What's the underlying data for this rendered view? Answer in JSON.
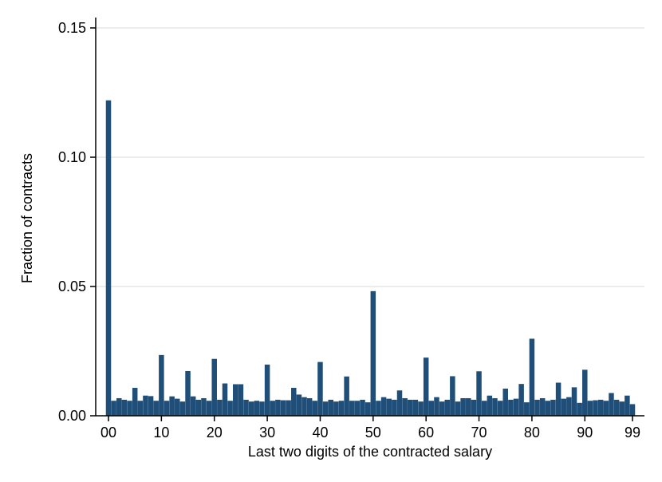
{
  "chart_data": {
    "type": "bar",
    "xlabel": "Last two digits of the contracted salary",
    "ylabel": "Fraction of contracts",
    "ylim": [
      0,
      0.15
    ],
    "xlim": [
      -1,
      100
    ],
    "grid": true,
    "bar_color": "#1f4e79",
    "y_ticks": [
      "0.00",
      "0.05",
      "0.10",
      "0.15"
    ],
    "x_ticks": [
      {
        "value": 0,
        "label": "00"
      },
      {
        "value": 10,
        "label": "10"
      },
      {
        "value": 20,
        "label": "20"
      },
      {
        "value": 30,
        "label": "30"
      },
      {
        "value": 40,
        "label": "40"
      },
      {
        "value": 50,
        "label": "50"
      },
      {
        "value": 60,
        "label": "60"
      },
      {
        "value": 70,
        "label": "70"
      },
      {
        "value": 80,
        "label": "80"
      },
      {
        "value": 90,
        "label": "90"
      },
      {
        "value": 99,
        "label": "99"
      }
    ],
    "x": [
      0,
      1,
      2,
      3,
      4,
      5,
      6,
      7,
      8,
      9,
      10,
      11,
      12,
      13,
      14,
      15,
      16,
      17,
      18,
      19,
      20,
      21,
      22,
      23,
      24,
      25,
      26,
      27,
      28,
      29,
      30,
      31,
      32,
      33,
      34,
      35,
      36,
      37,
      38,
      39,
      40,
      41,
      42,
      43,
      44,
      45,
      46,
      47,
      48,
      49,
      50,
      51,
      52,
      53,
      54,
      55,
      56,
      57,
      58,
      59,
      60,
      61,
      62,
      63,
      64,
      65,
      66,
      67,
      68,
      69,
      70,
      71,
      72,
      73,
      74,
      75,
      76,
      77,
      78,
      79,
      80,
      81,
      82,
      83,
      84,
      85,
      86,
      87,
      88,
      89,
      90,
      91,
      92,
      93,
      94,
      95,
      96,
      97,
      98,
      99
    ],
    "values": [
      0.122,
      0.0058,
      0.0068,
      0.0062,
      0.0058,
      0.0108,
      0.0058,
      0.0078,
      0.0076,
      0.0058,
      0.0235,
      0.0058,
      0.0075,
      0.0066,
      0.0055,
      0.0173,
      0.0075,
      0.0062,
      0.0068,
      0.0058,
      0.022,
      0.0062,
      0.0125,
      0.0058,
      0.0122,
      0.0122,
      0.0062,
      0.0055,
      0.0058,
      0.0055,
      0.0198,
      0.0058,
      0.0062,
      0.006,
      0.006,
      0.0108,
      0.0082,
      0.0072,
      0.0068,
      0.0058,
      0.0208,
      0.0055,
      0.0062,
      0.0055,
      0.0058,
      0.0152,
      0.0058,
      0.0058,
      0.0062,
      0.0052,
      0.0482,
      0.0058,
      0.0072,
      0.0066,
      0.0062,
      0.0098,
      0.0068,
      0.0062,
      0.0062,
      0.0055,
      0.0225,
      0.0058,
      0.0072,
      0.0055,
      0.0062,
      0.0153,
      0.0055,
      0.0068,
      0.0068,
      0.0062,
      0.0172,
      0.0058,
      0.0078,
      0.0068,
      0.0058,
      0.0105,
      0.0062,
      0.0066,
      0.0123,
      0.0052,
      0.0298,
      0.0062,
      0.0068,
      0.0058,
      0.0062,
      0.0128,
      0.0066,
      0.0072,
      0.011,
      0.005,
      0.0178,
      0.0058,
      0.006,
      0.0062,
      0.0058,
      0.0088,
      0.0062,
      0.0055,
      0.0078,
      0.0045
    ]
  }
}
